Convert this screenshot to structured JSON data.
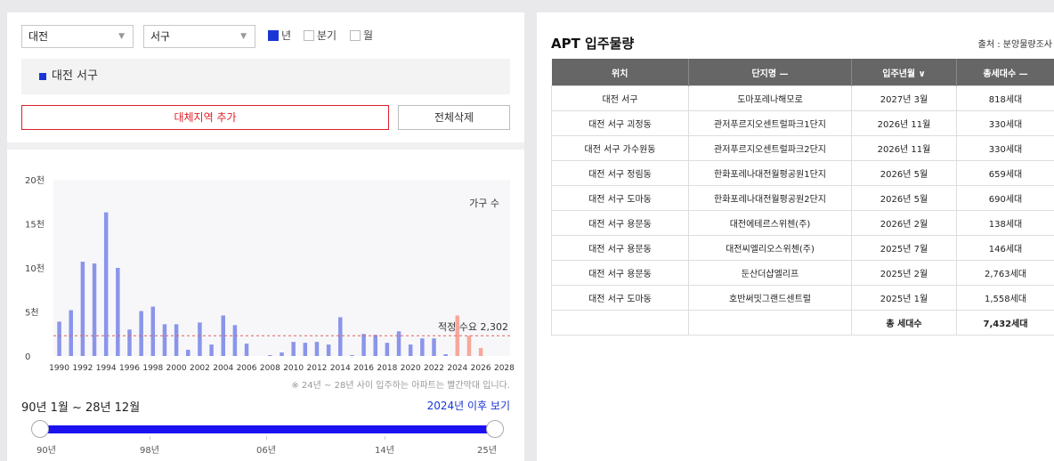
{
  "filters": {
    "city": "대전",
    "district": "서구",
    "periods": [
      {
        "label": "년",
        "checked": true
      },
      {
        "label": "분기",
        "checked": false
      },
      {
        "label": "월",
        "checked": false
      }
    ]
  },
  "region_tag": "대전 서구",
  "buttons": {
    "add_region": "대체지역 추가",
    "delete_all": "전체삭제"
  },
  "chart_data": {
    "type": "bar",
    "legend": "가구 수",
    "y_ticks": [
      "20천",
      "15천",
      "10천",
      "5천",
      "0"
    ],
    "ylim": [
      0,
      20000
    ],
    "x_tick_labels": [
      "1990",
      "1992",
      "1994",
      "1996",
      "1998",
      "2000",
      "2002",
      "2004",
      "2006",
      "2008",
      "2010",
      "2012",
      "2014",
      "2016",
      "2018",
      "2020",
      "2022",
      "2024",
      "2026",
      "2028"
    ],
    "years": [
      1990,
      1991,
      1992,
      1993,
      1994,
      1995,
      1996,
      1997,
      1998,
      1999,
      2000,
      2001,
      2002,
      2003,
      2004,
      2005,
      2006,
      2007,
      2008,
      2009,
      2010,
      2011,
      2012,
      2013,
      2014,
      2015,
      2016,
      2017,
      2018,
      2019,
      2020,
      2021,
      2022,
      2023,
      2024,
      2025,
      2026,
      2027,
      2028
    ],
    "values": [
      3900,
      5200,
      10700,
      10500,
      16300,
      10000,
      3000,
      5100,
      5600,
      3600,
      3600,
      700,
      3800,
      1300,
      4600,
      3500,
      1400,
      0,
      100,
      400,
      1600,
      1500,
      1600,
      1300,
      4400,
      100,
      2500,
      2400,
      1500,
      2800,
      1300,
      2000,
      2000,
      200,
      4600,
      2300,
      900,
      0,
      0
    ],
    "highlight_from_year": 2024,
    "reference_line": {
      "label": "적정 수요 2,302",
      "value": 2302
    },
    "colors": {
      "past": "#8a95ea",
      "future": "#f5a89a",
      "reference": "#e06060"
    }
  },
  "note": "※ 24년 ~ 28년 사이 입주하는 아파트는 빨간막대 입니다.",
  "range": {
    "label": "90년 1월 ~ 28년 12월",
    "after_link": "2024년 이후 보기",
    "ticks": [
      "90년",
      "98년",
      "06년",
      "14년",
      "25년"
    ]
  },
  "right_panel": {
    "title": "APT 입주물량",
    "source": "출처 : 분양물량조사",
    "columns": [
      "위치",
      "단지명 —",
      "입주년월 ∨",
      "총세대수 —"
    ],
    "rows": [
      [
        "대전 서구",
        "도마포레나해모로",
        "2027년 3월",
        "818세대"
      ],
      [
        "대전 서구 괴정동",
        "관저푸르지오센트럴파크1단지",
        "2026년 11월",
        "330세대"
      ],
      [
        "대전 서구 가수원동",
        "관저푸르지오센트럴파크2단지",
        "2026년 11월",
        "330세대"
      ],
      [
        "대전 서구 정림동",
        "한화포레나대전월평공원1단지",
        "2026년 5월",
        "659세대"
      ],
      [
        "대전 서구 도마동",
        "한화포레나대전월평공원2단지",
        "2026년 5월",
        "690세대"
      ],
      [
        "대전 서구 용문동",
        "대전에테르스위첸(주)",
        "2026년 2월",
        "138세대"
      ],
      [
        "대전 서구 용문동",
        "대전씨엘리오스위첸(주)",
        "2025년 7월",
        "146세대"
      ],
      [
        "대전 서구 용문동",
        "둔산더샵엘리프",
        "2025년 2월",
        "2,763세대"
      ],
      [
        "대전 서구 도마동",
        "호반써밋그랜드센트럴",
        "2025년 1월",
        "1,558세대"
      ]
    ],
    "total_label": "총 세대수",
    "total_value": "7,432세대"
  }
}
